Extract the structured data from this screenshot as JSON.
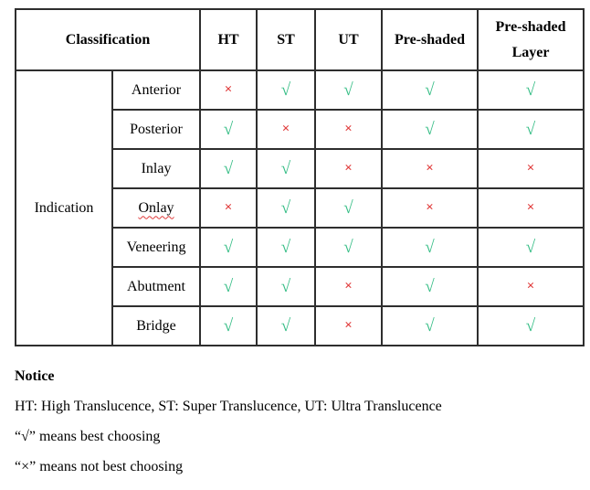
{
  "table": {
    "classification_header": "Classification",
    "columns": [
      "HT",
      "ST",
      "UT",
      "Pre-shaded",
      "Pre-shaded Layer"
    ],
    "row_group_label": "Indication",
    "rows": [
      {
        "label": "Anterior",
        "marks": [
          "cross",
          "check",
          "check",
          "check",
          "check"
        ]
      },
      {
        "label": "Posterior",
        "marks": [
          "check",
          "cross",
          "cross",
          "check",
          "check"
        ]
      },
      {
        "label": "Inlay",
        "marks": [
          "check",
          "check",
          "cross",
          "cross",
          "cross"
        ]
      },
      {
        "label": "Onlay",
        "marks": [
          "cross",
          "check",
          "check",
          "cross",
          "cross"
        ],
        "spellcheck_underline": true
      },
      {
        "label": "Veneering",
        "marks": [
          "check",
          "check",
          "check",
          "check",
          "check"
        ]
      },
      {
        "label": "Abutment",
        "marks": [
          "check",
          "check",
          "cross",
          "check",
          "cross"
        ]
      },
      {
        "label": "Bridge",
        "marks": [
          "check",
          "check",
          "cross",
          "check",
          "check"
        ]
      }
    ]
  },
  "symbols": {
    "check": "√",
    "cross": "×"
  },
  "colors": {
    "check": "#35bd85",
    "cross": "#e03a3a",
    "border": "#2e2e2e"
  },
  "notes": {
    "title": "Notice",
    "lines": [
      "HT: High Translucence, ST: Super Translucence, UT: Ultra Translucence",
      "“√” means best choosing",
      "“×” means not best choosing"
    ]
  }
}
